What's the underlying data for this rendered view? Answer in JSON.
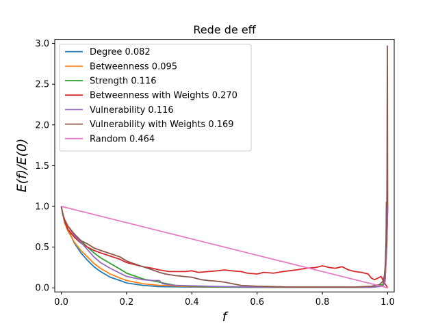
{
  "chart_data": {
    "type": "line",
    "title": "Rede de eff",
    "xlabel": "f",
    "ylabel": "E(f)/E(0)",
    "xlim": [
      -0.02,
      1.02
    ],
    "ylim": [
      -0.05,
      3.05
    ],
    "xticks": [
      0.0,
      0.2,
      0.4,
      0.6,
      0.8,
      1.0
    ],
    "xtick_labels": [
      "0.0",
      "0.2",
      "0.4",
      "0.6",
      "0.8",
      "1.0"
    ],
    "yticks": [
      0.0,
      0.5,
      1.0,
      1.5,
      2.0,
      2.5,
      3.0
    ],
    "ytick_labels": [
      "0.0",
      "0.5",
      "1.0",
      "1.5",
      "2.0",
      "2.5",
      "3.0"
    ],
    "grid": false,
    "legend_position": "top-left",
    "series": [
      {
        "name": "Degree 0.082",
        "color": "#1f77b4",
        "x": [
          0,
          0.005,
          0.01,
          0.02,
          0.04,
          0.06,
          0.08,
          0.1,
          0.12,
          0.15,
          0.18,
          0.2,
          0.25,
          0.3,
          0.4,
          0.5,
          0.6,
          0.7,
          0.8,
          0.9,
          0.95,
          0.985,
          0.992,
          0.997,
          1.0
        ],
        "y": [
          1.0,
          0.9,
          0.82,
          0.72,
          0.55,
          0.43,
          0.34,
          0.26,
          0.2,
          0.13,
          0.09,
          0.06,
          0.03,
          0.015,
          0.01,
          0.008,
          0.006,
          0.005,
          0.005,
          0.005,
          0.006,
          0.02,
          0.08,
          0.5,
          1.0
        ]
      },
      {
        "name": "Betweenness 0.095",
        "color": "#ff7f0e",
        "x": [
          0,
          0.005,
          0.01,
          0.02,
          0.04,
          0.06,
          0.08,
          0.1,
          0.12,
          0.15,
          0.18,
          0.2,
          0.25,
          0.3,
          0.4,
          0.5,
          0.6,
          0.7,
          0.8,
          0.9,
          0.95,
          0.985,
          0.992,
          0.997,
          1.0
        ],
        "y": [
          1.0,
          0.9,
          0.8,
          0.7,
          0.56,
          0.46,
          0.38,
          0.3,
          0.24,
          0.17,
          0.12,
          0.09,
          0.05,
          0.03,
          0.015,
          0.01,
          0.008,
          0.006,
          0.006,
          0.006,
          0.008,
          0.03,
          0.1,
          0.45,
          1.0
        ]
      },
      {
        "name": "Strength 0.116",
        "color": "#2ca02c",
        "x": [
          0,
          0.005,
          0.01,
          0.02,
          0.04,
          0.06,
          0.08,
          0.1,
          0.12,
          0.15,
          0.18,
          0.2,
          0.25,
          0.3,
          0.35,
          0.4,
          0.5,
          0.6,
          0.7,
          0.8,
          0.9,
          0.95,
          0.985,
          0.992,
          0.997,
          1.0
        ],
        "y": [
          1.0,
          0.9,
          0.84,
          0.76,
          0.66,
          0.58,
          0.5,
          0.43,
          0.37,
          0.3,
          0.23,
          0.18,
          0.11,
          0.07,
          0.03,
          0.02,
          0.01,
          0.008,
          0.007,
          0.007,
          0.007,
          0.01,
          0.04,
          0.15,
          0.6,
          1.0
        ]
      },
      {
        "name": "Betweenness with Weights 0.270",
        "color": "#d62728",
        "x": [
          0,
          0.005,
          0.01,
          0.02,
          0.04,
          0.06,
          0.08,
          0.1,
          0.12,
          0.15,
          0.18,
          0.2,
          0.22,
          0.25,
          0.28,
          0.3,
          0.33,
          0.35,
          0.38,
          0.4,
          0.42,
          0.45,
          0.48,
          0.5,
          0.52,
          0.55,
          0.57,
          0.6,
          0.62,
          0.65,
          0.68,
          0.7,
          0.72,
          0.75,
          0.78,
          0.8,
          0.82,
          0.84,
          0.86,
          0.88,
          0.9,
          0.92,
          0.94,
          0.95,
          0.96,
          0.97,
          0.98,
          0.99,
          0.995,
          1.0
        ],
        "y": [
          1.0,
          0.9,
          0.82,
          0.72,
          0.62,
          0.55,
          0.5,
          0.46,
          0.43,
          0.39,
          0.35,
          0.31,
          0.29,
          0.26,
          0.24,
          0.22,
          0.2,
          0.2,
          0.2,
          0.21,
          0.19,
          0.2,
          0.21,
          0.22,
          0.21,
          0.2,
          0.18,
          0.17,
          0.19,
          0.18,
          0.2,
          0.21,
          0.22,
          0.24,
          0.25,
          0.27,
          0.25,
          0.24,
          0.26,
          0.22,
          0.2,
          0.19,
          0.17,
          0.12,
          0.1,
          0.12,
          0.14,
          0.06,
          0.03,
          0.0
        ]
      },
      {
        "name": "Vulnerability 0.116",
        "color": "#9467bd",
        "x": [
          0,
          0.005,
          0.01,
          0.02,
          0.04,
          0.06,
          0.08,
          0.1,
          0.12,
          0.15,
          0.18,
          0.2,
          0.25,
          0.28,
          0.3,
          0.31,
          0.35,
          0.4,
          0.5,
          0.6,
          0.7,
          0.8,
          0.9,
          0.95,
          0.985,
          0.992,
          0.997,
          1.0
        ],
        "y": [
          1.0,
          0.9,
          0.84,
          0.76,
          0.64,
          0.56,
          0.47,
          0.38,
          0.31,
          0.24,
          0.18,
          0.14,
          0.1,
          0.09,
          0.09,
          0.05,
          0.03,
          0.025,
          0.015,
          0.01,
          0.008,
          0.007,
          0.007,
          0.008,
          0.02,
          0.1,
          0.5,
          1.0
        ]
      },
      {
        "name": "Vulnerability with Weights 0.169",
        "color": "#8c564b",
        "x": [
          0,
          0.005,
          0.01,
          0.02,
          0.04,
          0.06,
          0.08,
          0.1,
          0.12,
          0.15,
          0.18,
          0.2,
          0.22,
          0.25,
          0.28,
          0.3,
          0.32,
          0.35,
          0.4,
          0.43,
          0.45,
          0.48,
          0.5,
          0.55,
          0.6,
          0.65,
          0.7,
          0.8,
          0.9,
          0.95,
          0.975,
          0.985,
          0.99,
          0.993,
          0.995,
          0.996,
          0.997,
          0.998,
          0.999,
          1.0
        ],
        "y": [
          1.0,
          0.9,
          0.84,
          0.76,
          0.66,
          0.58,
          0.54,
          0.49,
          0.46,
          0.42,
          0.38,
          0.33,
          0.3,
          0.26,
          0.22,
          0.19,
          0.17,
          0.15,
          0.13,
          0.1,
          0.09,
          0.08,
          0.07,
          0.03,
          0.02,
          0.015,
          0.01,
          0.01,
          0.01,
          0.02,
          0.04,
          0.08,
          0.15,
          0.3,
          0.6,
          1.05,
          0.5,
          1.5,
          2.97,
          1.0
        ]
      },
      {
        "name": "Random 0.464",
        "color": "#e377c2",
        "x": [
          0,
          1.0
        ],
        "y": [
          1.0,
          0.0
        ]
      }
    ]
  }
}
